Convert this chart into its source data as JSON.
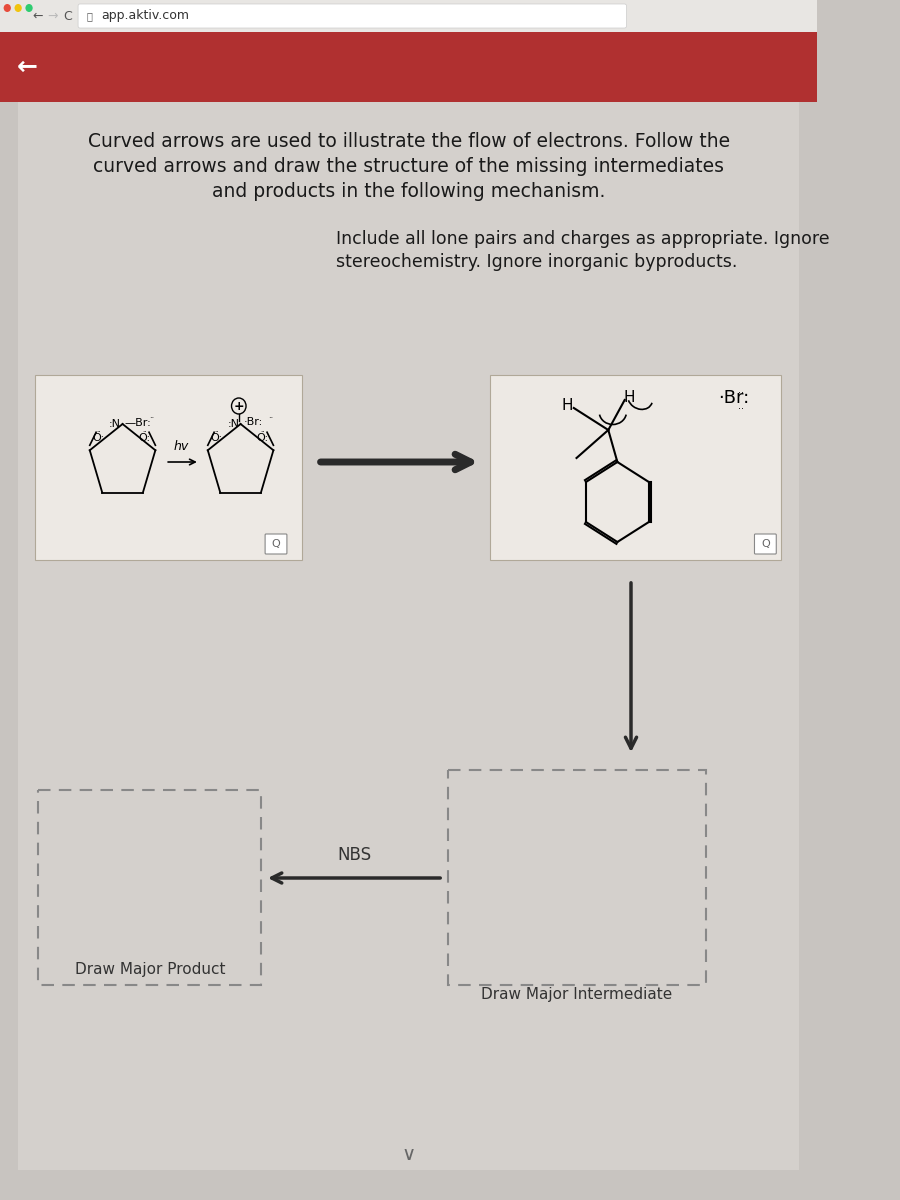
{
  "bg_color": "#c8c4c0",
  "browser_bar_color": "#e8e6e3",
  "red_bar_color": "#b03030",
  "content_bg": "#d4d0cc",
  "white_box_bg": "#e8e5e0",
  "title_text1": "Curved arrows are used to illustrate the flow of electrons. Follow the",
  "title_text2": "curved arrows and draw the structure of the missing intermediates",
  "title_text3": "and products in the following mechanism.",
  "subtitle_text1": "Include all lone pairs and charges as appropriate. Ignore",
  "subtitle_text2": "stereochemistry. Ignore inorganic byproducts.",
  "url_text": "app.aktiv.com",
  "nbs_label": "NBS",
  "draw_product_label": "Draw Major Product",
  "draw_intermediate_label": "Draw Major Intermediate",
  "hv_label": "hv",
  "text_color": "#1a1a1a"
}
